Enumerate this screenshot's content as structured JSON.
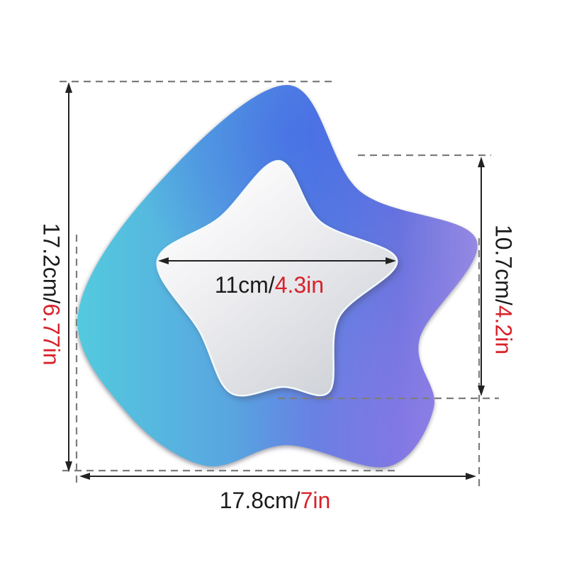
{
  "page": {
    "description": "Dimension diagram of a star shaped gradient wall mirror with inner star mirror"
  },
  "colors": {
    "page_bg": "#ffffff",
    "metric_text": "#1b1b1b",
    "imperial_text": "#d8222a",
    "dash_line": "#7d7d7d",
    "arrow": "#222222",
    "outer_gradient_left": "#53cbde",
    "outer_gradient_mid": "#5b82e2",
    "outer_gradient_right": "#9b8be4",
    "inner_mirror_light": "#ffffff",
    "inner_mirror_dark": "#cfd2d8"
  },
  "diagram": {
    "product": "star-shaped-mirror",
    "labels": {
      "outer_height": {
        "metric": "17.2cm/",
        "imperial": "6.77in"
      },
      "inner_height": {
        "metric": "10.7cm/",
        "imperial": "4.2in"
      },
      "inner_width": {
        "metric": "11cm/",
        "imperial": "4.3in"
      },
      "outer_width": {
        "metric": "17.8cm/",
        "imperial": "7in"
      }
    }
  }
}
